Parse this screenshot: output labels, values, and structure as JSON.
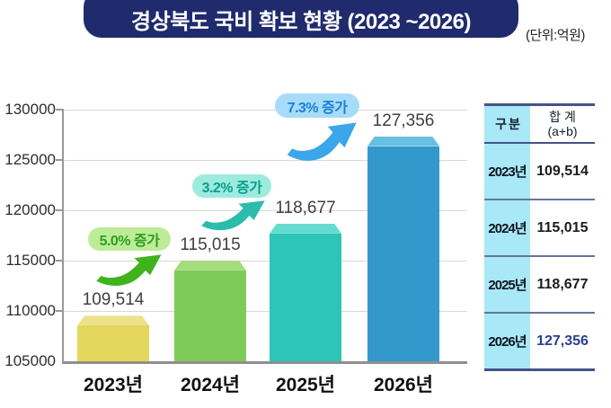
{
  "title": "경상북도 국비 확보 현황 (2023 ~2026)",
  "unit_label": "(단위:억원)",
  "chart_data": {
    "type": "bar",
    "title": "경상북도 국비 확보 현황 (2023 ~2026)",
    "unit": "억원",
    "categories": [
      "2023년",
      "2024년",
      "2025년",
      "2026년"
    ],
    "values": [
      109514,
      115015,
      118677,
      127356
    ],
    "value_labels": [
      "109,514",
      "115,015",
      "118,677",
      "127,356"
    ],
    "ylim": [
      105000,
      130000
    ],
    "ytick_step": 5000,
    "yticks": [
      "130000",
      "125000",
      "120000",
      "115000",
      "110000",
      "105000"
    ],
    "grid": true,
    "legend": false,
    "bar_colors": [
      "#e4d65c",
      "#7ecb5a",
      "#2cc5b8",
      "#3399cc"
    ],
    "bar_cap_colors": [
      "#ece289",
      "#a6db80",
      "#65dccf",
      "#67bfe2"
    ],
    "annotations": [
      {
        "label": "5.0% 증가",
        "from": "2023년",
        "to": "2024년",
        "badge_bg": "#bdec99",
        "text_color": "#2f9e1d",
        "arrow_color": "#3fb31c"
      },
      {
        "label": "3.2% 증가",
        "from": "2024년",
        "to": "2025년",
        "badge_bg": "#9debde",
        "text_color": "#0a9e8e",
        "arrow_color": "#2bbcac"
      },
      {
        "label": "7.3% 증가",
        "from": "2025년",
        "to": "2026년",
        "badge_bg": "#a6dcf7",
        "text_color": "#1b7fd8",
        "arrow_color": "#3ba6e9"
      }
    ]
  },
  "table": {
    "header": {
      "col1": "구 분",
      "col2_line1": "합 계",
      "col2_line2": "(a+b)"
    },
    "rows": [
      {
        "year": "2023년",
        "value": "109,514",
        "highlight": false
      },
      {
        "year": "2024년",
        "value": "115,015",
        "highlight": false
      },
      {
        "year": "2025년",
        "value": "118,677",
        "highlight": false
      },
      {
        "year": "2026년",
        "value": "127,356",
        "highlight": true
      }
    ],
    "col1_bg": "#a9e8f7",
    "highlight_color": "#2b3f92"
  },
  "colors": {
    "banner_bg": "#202b6d",
    "banner_text": "#ffffff"
  }
}
